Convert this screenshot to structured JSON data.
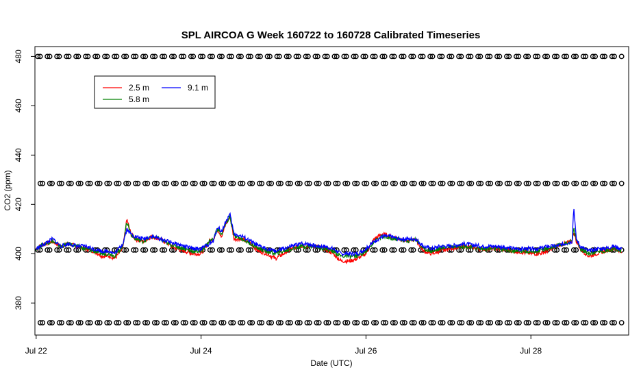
{
  "chart_data": {
    "type": "line",
    "title": "SPL AIRCOA G  Week 160722 to 160728  Calibrated Timeseries",
    "xlabel": "Date (UTC)",
    "ylabel": "CO2 (ppm)",
    "xlim": [
      21.985,
      29.186
    ],
    "ylim": [
      367,
      484
    ],
    "xticks": [
      {
        "value": 22,
        "label": "Jul 22"
      },
      {
        "value": 24,
        "label": "Jul 24"
      },
      {
        "value": 26,
        "label": "Jul 26"
      },
      {
        "value": 28,
        "label": "Jul 28"
      }
    ],
    "yticks": [
      {
        "value": 380,
        "label": "380"
      },
      {
        "value": 400,
        "label": "400"
      },
      {
        "value": 420,
        "label": "420"
      },
      {
        "value": 440,
        "label": "440"
      },
      {
        "value": 460,
        "label": "460"
      },
      {
        "value": 480,
        "label": "480"
      }
    ],
    "legend": {
      "position": "top-left",
      "entries": [
        {
          "label": "2.5 m",
          "color": "#ff0000"
        },
        {
          "label": "5.8 m",
          "color": "#008000"
        },
        {
          "label": "9.1 m",
          "color": "#0000ff"
        }
      ]
    },
    "series": [
      {
        "name": "2.5 m",
        "color": "#ff0000",
        "x": [
          22.0,
          22.1,
          22.2,
          22.3,
          22.4,
          22.5,
          22.6,
          22.7,
          22.8,
          22.9,
          22.95,
          23.0,
          23.05,
          23.1,
          23.15,
          23.2,
          23.3,
          23.4,
          23.5,
          23.6,
          23.7,
          23.8,
          23.9,
          24.0,
          24.1,
          24.15,
          24.2,
          24.25,
          24.3,
          24.35,
          24.4,
          24.5,
          24.6,
          24.7,
          24.8,
          24.9,
          25.0,
          25.1,
          25.2,
          25.3,
          25.4,
          25.5,
          25.6,
          25.7,
          25.8,
          25.9,
          26.0,
          26.1,
          26.2,
          26.3,
          26.4,
          26.5,
          26.6,
          26.7,
          26.8,
          26.9,
          27.0,
          27.2,
          27.4,
          27.6,
          27.8,
          28.0,
          28.1,
          28.2,
          28.3,
          28.4,
          28.5,
          28.52,
          28.55,
          28.6,
          28.7,
          28.8,
          28.9,
          29.0,
          29.1
        ],
        "y": [
          402,
          404,
          405,
          403,
          404,
          403,
          402,
          401,
          399,
          399,
          398,
          400,
          402,
          414,
          408,
          406,
          405,
          407,
          406,
          404,
          402,
          401,
          400,
          400,
          405,
          406,
          410,
          407,
          412,
          415,
          406,
          406,
          404,
          401,
          400,
          398,
          400,
          402,
          403,
          403,
          403,
          402,
          400,
          397,
          397,
          398,
          400,
          406,
          408,
          407,
          406,
          405,
          406,
          401,
          400,
          401,
          402,
          403,
          402,
          402,
          401,
          400,
          400,
          401,
          403,
          404,
          405,
          409,
          405,
          402,
          399,
          400,
          401,
          402,
          401
        ]
      },
      {
        "name": "5.8 m",
        "color": "#008000",
        "x": [
          22.0,
          22.1,
          22.2,
          22.3,
          22.4,
          22.5,
          22.6,
          22.7,
          22.8,
          22.9,
          22.95,
          23.0,
          23.05,
          23.1,
          23.15,
          23.2,
          23.3,
          23.4,
          23.5,
          23.6,
          23.7,
          23.8,
          23.9,
          24.0,
          24.1,
          24.15,
          24.2,
          24.25,
          24.3,
          24.35,
          24.4,
          24.5,
          24.6,
          24.7,
          24.8,
          24.9,
          25.0,
          25.1,
          25.2,
          25.3,
          25.4,
          25.5,
          25.6,
          25.7,
          25.8,
          25.9,
          26.0,
          26.1,
          26.2,
          26.3,
          26.4,
          26.5,
          26.6,
          26.7,
          26.8,
          26.9,
          27.0,
          27.2,
          27.4,
          27.6,
          27.8,
          28.0,
          28.1,
          28.2,
          28.3,
          28.4,
          28.5,
          28.52,
          28.55,
          28.6,
          28.7,
          28.8,
          28.9,
          29.0,
          29.1
        ],
        "y": [
          402,
          404,
          405,
          403,
          404,
          403,
          402,
          401,
          400,
          400,
          399,
          401,
          403,
          413,
          408,
          406,
          405,
          407,
          406,
          404,
          403,
          402,
          401,
          401,
          405,
          406,
          410,
          408,
          412,
          415,
          407,
          406,
          404,
          402,
          401,
          400,
          401,
          402,
          403,
          403,
          403,
          402,
          401,
          399,
          399,
          399,
          401,
          405,
          407,
          406,
          406,
          405,
          406,
          402,
          401,
          402,
          403,
          403,
          402,
          402,
          401,
          401,
          401,
          402,
          403,
          404,
          405,
          410,
          406,
          402,
          400,
          401,
          401,
          402,
          401
        ]
      },
      {
        "name": "9.1 m",
        "color": "#0000ff",
        "x": [
          22.0,
          22.1,
          22.2,
          22.3,
          22.4,
          22.5,
          22.6,
          22.7,
          22.8,
          22.9,
          22.95,
          23.0,
          23.05,
          23.1,
          23.15,
          23.2,
          23.3,
          23.4,
          23.5,
          23.6,
          23.7,
          23.8,
          23.9,
          24.0,
          24.1,
          24.15,
          24.2,
          24.25,
          24.3,
          24.35,
          24.4,
          24.5,
          24.6,
          24.7,
          24.8,
          24.9,
          25.0,
          25.1,
          25.2,
          25.3,
          25.4,
          25.5,
          25.6,
          25.7,
          25.8,
          25.9,
          26.0,
          26.1,
          26.2,
          26.3,
          26.4,
          26.5,
          26.6,
          26.7,
          26.8,
          26.9,
          27.0,
          27.2,
          27.4,
          27.6,
          27.8,
          28.0,
          28.1,
          28.2,
          28.3,
          28.4,
          28.5,
          28.52,
          28.55,
          28.6,
          28.7,
          28.8,
          28.9,
          29.0,
          29.1
        ],
        "y": [
          402,
          404,
          406,
          403,
          404,
          403,
          403,
          402,
          401,
          401,
          400,
          402,
          404,
          410,
          408,
          407,
          406,
          407,
          406,
          405,
          404,
          403,
          402,
          402,
          404,
          405,
          411,
          409,
          413,
          416,
          408,
          407,
          405,
          403,
          402,
          401,
          402,
          403,
          404,
          404,
          403,
          403,
          402,
          400,
          400,
          400,
          402,
          405,
          407,
          407,
          406,
          406,
          406,
          403,
          402,
          403,
          403,
          404,
          403,
          403,
          402,
          402,
          402,
          403,
          403,
          404,
          405,
          419,
          406,
          403,
          401,
          402,
          402,
          403,
          402
        ]
      },
      {
        "name": "",
        "type": "points",
        "marker": "open-circle",
        "y_levels": [
          480,
          428.5,
          401.5,
          372
        ],
        "x_start": 22.02,
        "x_end": 29.1
      }
    ]
  }
}
